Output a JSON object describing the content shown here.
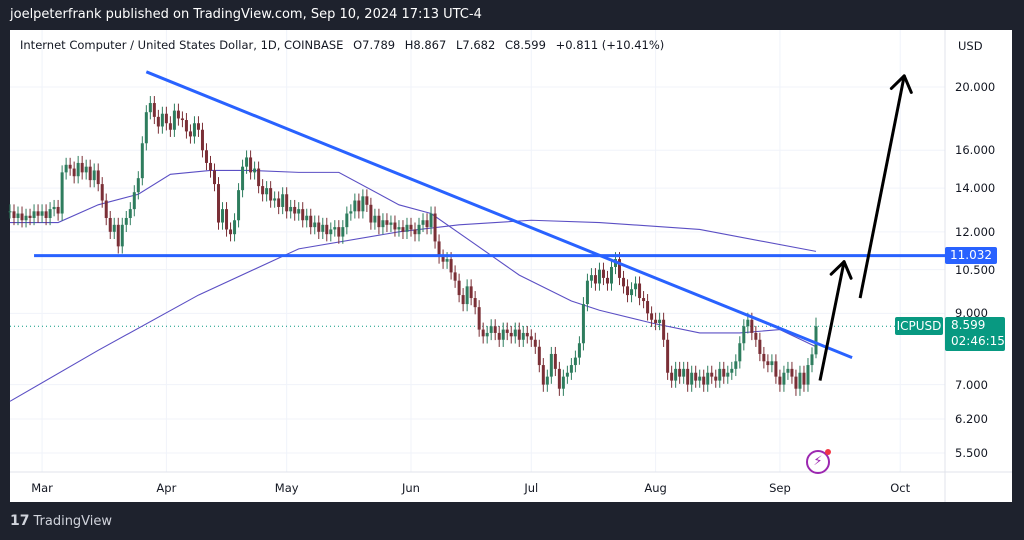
{
  "header": {
    "publisher": "joelpeterfrank published on TradingView.com, Sep 10, 2024 17:13 UTC-4"
  },
  "legend": {
    "symbol": "Internet Computer / United States Dollar, 1D, COINBASE",
    "open": "O7.789",
    "high": "H8.867",
    "low": "L7.682",
    "close": "C8.599",
    "change": "+0.811 (+10.41%)"
  },
  "price_axis": {
    "currency": "USD",
    "ticks": [
      "20.000",
      "16.000",
      "14.000",
      "12.000",
      "10.500",
      "9.000",
      "7.000",
      "6.200",
      "5.500"
    ]
  },
  "time_axis": {
    "ticks": [
      {
        "label": "Mar",
        "date": "2024-03-01"
      },
      {
        "label": "Apr",
        "date": "2024-04-01"
      },
      {
        "label": "May",
        "date": "2024-05-01"
      },
      {
        "label": "Jun",
        "date": "2024-06-01"
      },
      {
        "label": "Jul",
        "date": "2024-07-01"
      },
      {
        "label": "Aug",
        "date": "2024-08-01"
      },
      {
        "label": "Sep",
        "date": "2024-09-01"
      },
      {
        "label": "Oct",
        "date": "2024-10-01"
      }
    ]
  },
  "labels": {
    "symbol_tag": "ICPUSD",
    "last_price": "8.599",
    "countdown": "02:46:15",
    "level_tag": "11.032"
  },
  "footer": {
    "brand": "TradingView"
  },
  "colors": {
    "up": "#2e7d5e",
    "down": "#7a2f36",
    "trendline": "#2962ff",
    "ma": "#5b4fc4",
    "arrow": "#000000",
    "last_price": "#089981"
  },
  "chart_data": {
    "type": "candlestick",
    "y_scale": "log",
    "ylim": [
      5.2,
      22
    ],
    "grid": true,
    "first_date": "2024-02-22",
    "last_date": "2024-09-10",
    "closes": [
      12.9,
      12.6,
      12.8,
      12.5,
      12.7,
      12.6,
      12.9,
      12.7,
      12.9,
      12.6,
      13.0,
      13.1,
      12.8,
      14.8,
      15.2,
      15.0,
      14.6,
      15.3,
      14.8,
      15.1,
      14.4,
      14.9,
      14.2,
      13.4,
      12.6,
      12.0,
      12.3,
      11.4,
      12.3,
      12.6,
      13.0,
      13.8,
      14.5,
      16.4,
      18.3,
      18.9,
      18.0,
      17.4,
      18.2,
      17.6,
      17.2,
      18.4,
      17.9,
      17.8,
      17.1,
      16.8,
      17.6,
      17.2,
      16.0,
      15.3,
      14.9,
      14.2,
      12.4,
      13.0,
      12.1,
      11.9,
      12.5,
      13.9,
      15.1,
      15.6,
      14.8,
      15.0,
      14.1,
      13.7,
      14.0,
      13.4,
      13.5,
      13.1,
      13.7,
      12.9,
      13.1,
      12.8,
      13.0,
      12.5,
      12.7,
      12.2,
      12.4,
      12.0,
      12.3,
      11.9,
      12.1,
      12.2,
      11.8,
      12.2,
      12.8,
      12.9,
      13.4,
      12.9,
      13.6,
      13.2,
      12.4,
      12.7,
      12.2,
      12.5,
      12.3,
      12.4,
      12.1,
      12.2,
      12.0,
      12.3,
      12.1,
      11.9,
      12.3,
      12.5,
      12.2,
      12.8,
      11.6,
      11.0,
      10.8,
      10.9,
      10.4,
      10.1,
      9.6,
      9.3,
      9.9,
      9.5,
      9.2,
      8.5,
      8.3,
      8.4,
      8.6,
      8.4,
      8.2,
      8.5,
      8.4,
      8.3,
      8.5,
      8.2,
      8.4,
      8.3,
      8.2,
      8.0,
      7.5,
      7.0,
      7.2,
      7.8,
      7.4,
      6.9,
      7.2,
      7.3,
      7.5,
      7.7,
      8.1,
      9.3,
      10.1,
      10.3,
      10.0,
      10.5,
      10.2,
      10.0,
      10.6,
      10.9,
      10.2,
      9.9,
      9.6,
      9.8,
      10.0,
      9.5,
      9.4,
      9.0,
      8.8,
      8.7,
      8.8,
      8.2,
      7.3,
      7.1,
      7.4,
      7.2,
      7.4,
      7.0,
      7.3,
      7.1,
      7.2,
      7.0,
      7.3,
      7.2,
      7.1,
      7.4,
      7.2,
      7.3,
      7.4,
      7.6,
      8.1,
      8.6,
      8.8,
      8.4,
      8.2,
      7.8,
      7.6,
      7.5,
      7.6,
      7.2,
      7.0,
      7.3,
      7.4,
      7.2,
      6.9,
      7.3,
      7.0,
      7.5,
      7.789,
      8.599
    ],
    "last_candle": {
      "open": 7.789,
      "high": 8.867,
      "low": 7.682,
      "close": 8.599
    },
    "moving_averages": [
      {
        "points": [
          [
            "2024-02-22",
            12.4
          ],
          [
            "2024-03-05",
            12.4
          ],
          [
            "2024-03-15",
            13.2
          ],
          [
            "2024-03-25",
            13.7
          ],
          [
            "2024-04-02",
            14.7
          ],
          [
            "2024-04-12",
            14.9
          ],
          [
            "2024-04-22",
            14.9
          ],
          [
            "2024-05-04",
            14.8
          ],
          [
            "2024-05-14",
            14.8
          ],
          [
            "2024-05-29",
            13.2
          ],
          [
            "2024-06-06",
            12.8
          ],
          [
            "2024-06-16",
            11.6
          ],
          [
            "2024-06-28",
            10.3
          ],
          [
            "2024-07-11",
            9.4
          ],
          [
            "2024-07-18",
            9.1
          ],
          [
            "2024-07-31",
            8.7
          ],
          [
            "2024-08-12",
            8.4
          ],
          [
            "2024-08-22",
            8.4
          ],
          [
            "2024-09-01",
            8.5
          ],
          [
            "2024-09-10",
            8.0
          ]
        ]
      },
      {
        "points": [
          [
            "2024-02-22",
            6.6
          ],
          [
            "2024-03-15",
            7.9
          ],
          [
            "2024-04-09",
            9.6
          ],
          [
            "2024-05-04",
            11.3
          ],
          [
            "2024-05-29",
            12.0
          ],
          [
            "2024-06-13",
            12.3
          ],
          [
            "2024-07-01",
            12.5
          ],
          [
            "2024-07-18",
            12.4
          ],
          [
            "2024-08-12",
            12.1
          ],
          [
            "2024-09-10",
            11.2
          ]
        ]
      }
    ],
    "drawings": {
      "trendline": [
        [
          "2024-03-27",
          21.1
        ],
        [
          "2024-09-19",
          7.7
        ]
      ],
      "horizontal_level": {
        "value": 11.032,
        "from": "2024-02-28"
      },
      "arrows": [
        [
          [
            "2024-09-11",
            7.1
          ],
          [
            "2024-09-17",
            10.8
          ]
        ],
        [
          [
            "2024-09-21",
            9.5
          ],
          [
            "2024-10-02",
            20.8
          ]
        ]
      ]
    }
  }
}
